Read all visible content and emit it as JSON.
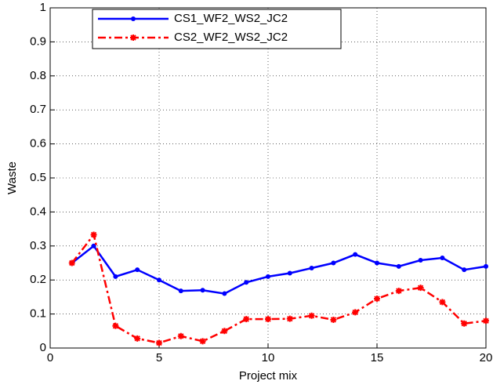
{
  "chart_data": {
    "type": "line",
    "xlabel": "Project mix",
    "ylabel": "Waste",
    "x": [
      1,
      2,
      3,
      4,
      5,
      6,
      7,
      8,
      9,
      10,
      11,
      12,
      13,
      14,
      15,
      16,
      17,
      18,
      19,
      20
    ],
    "series": [
      {
        "name": "CS1_WF2_WS2_JC2",
        "color": "#0000ff",
        "linestyle": "solid",
        "marker": "dot",
        "values": [
          0.25,
          0.3,
          0.21,
          0.23,
          0.2,
          0.168,
          0.17,
          0.16,
          0.193,
          0.21,
          0.22,
          0.235,
          0.25,
          0.275,
          0.25,
          0.24,
          0.258,
          0.265,
          0.23,
          0.24
        ]
      },
      {
        "name": "CS2_WF2_WS2_JC2",
        "color": "#ff0000",
        "linestyle": "dashdot",
        "marker": "star",
        "values": [
          0.25,
          0.333,
          0.065,
          0.028,
          0.015,
          0.035,
          0.02,
          0.05,
          0.085,
          0.085,
          0.086,
          0.095,
          0.083,
          0.105,
          0.145,
          0.168,
          0.177,
          0.135,
          0.072,
          0.08
        ]
      }
    ],
    "xlim": [
      0,
      20
    ],
    "xticks": [
      0,
      5,
      10,
      15,
      20
    ],
    "ylim": [
      0,
      1
    ],
    "yticks": [
      0,
      0.1,
      0.2,
      0.3,
      0.4,
      0.5,
      0.6,
      0.7,
      0.8,
      0.9,
      1
    ],
    "grid": true,
    "legend": "upper left"
  }
}
